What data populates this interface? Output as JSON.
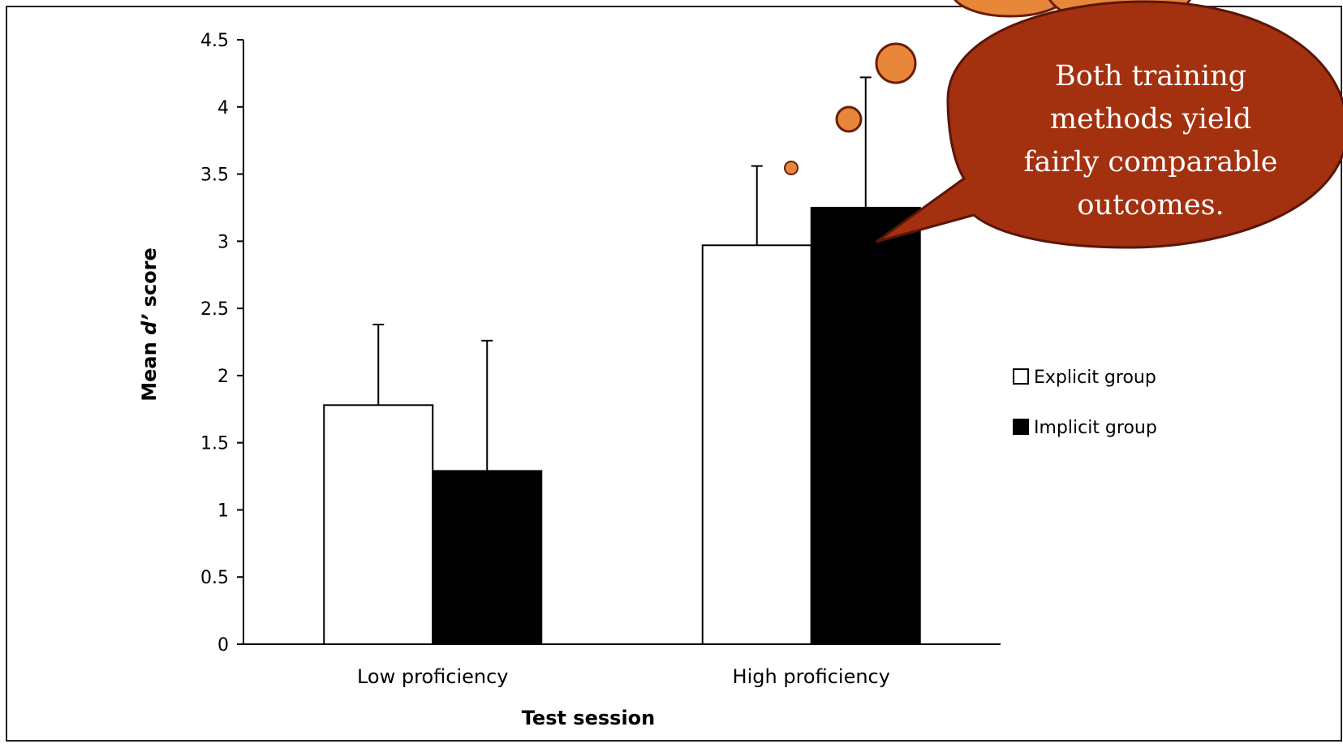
{
  "chart_data": {
    "type": "bar",
    "title": "",
    "xlabel": "Test session",
    "ylabel_parts": [
      "Mean ",
      "d’",
      " score"
    ],
    "ylim": [
      0,
      4.5
    ],
    "yticks": [
      "0",
      "0.5",
      "1",
      "1.5",
      "2",
      "2.5",
      "3",
      "3.5",
      "4",
      "4.5"
    ],
    "categories": [
      "Low proficiency",
      "High proficiency"
    ],
    "series": [
      {
        "name": "Explicit group",
        "values": [
          1.78,
          2.97
        ],
        "error": [
          0.6,
          0.59
        ],
        "color": "#ffffff"
      },
      {
        "name": "Implicit group",
        "values": [
          1.29,
          3.25
        ],
        "error": [
          0.97,
          0.97
        ],
        "color": "#000000"
      }
    ],
    "legend_position": "right",
    "grid": false
  },
  "callout": {
    "lines": [
      "Both training",
      "methods yield",
      "fairly comparable",
      "outcomes."
    ],
    "fill": "#a3300f",
    "bubble_color": "#e8873a"
  }
}
